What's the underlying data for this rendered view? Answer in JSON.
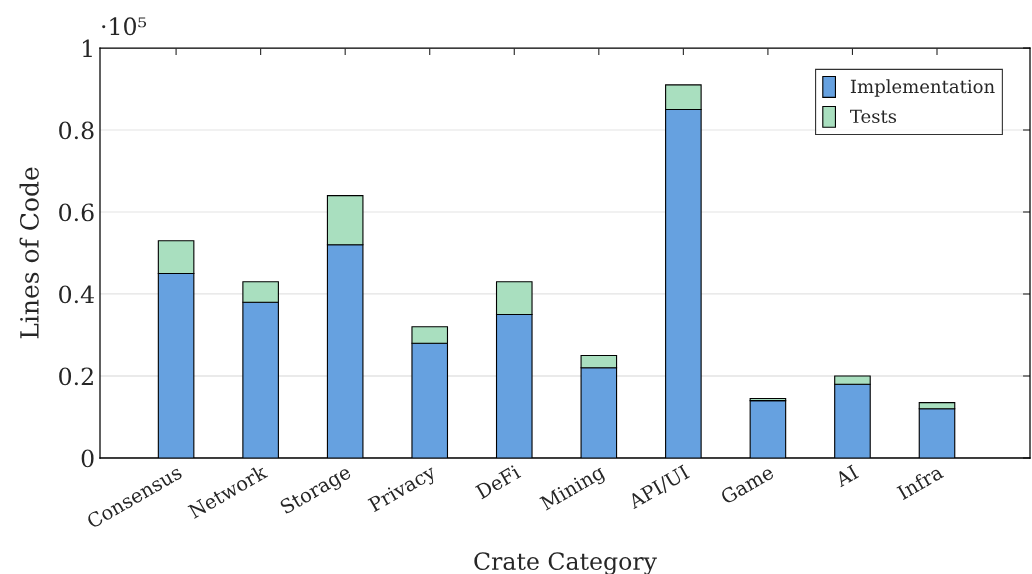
{
  "chart_data": {
    "type": "bar",
    "stacked": true,
    "xlabel": "Crate Category",
    "ylabel": "Lines of Code",
    "categories": [
      "Consensus",
      "Network",
      "Storage",
      "Privacy",
      "DeFi",
      "Mining",
      "API/UI",
      "Game",
      "AI",
      "Infra"
    ],
    "series": [
      {
        "name": "Implementation",
        "color": "#66a1e0",
        "values": [
          0.45,
          0.38,
          0.52,
          0.28,
          0.35,
          0.22,
          0.85,
          0.14,
          0.18,
          0.12
        ]
      },
      {
        "name": "Tests",
        "color": "#a9dfbf",
        "values": [
          0.08,
          0.05,
          0.12,
          0.04,
          0.08,
          0.03,
          0.06,
          0.005,
          0.02,
          0.015
        ]
      }
    ],
    "ylim": [
      0,
      1
    ],
    "yticks": [
      0,
      {
        "value": 0.2,
        "label": "0.2"
      },
      {
        "value": 0.4,
        "label": "0.4"
      },
      {
        "value": 0.6,
        "label": "0.6"
      },
      {
        "value": 0.8,
        "label": "0.8"
      },
      1
    ],
    "annotations": [
      "·10⁵"
    ],
    "grid": "y",
    "legend": "top right"
  }
}
